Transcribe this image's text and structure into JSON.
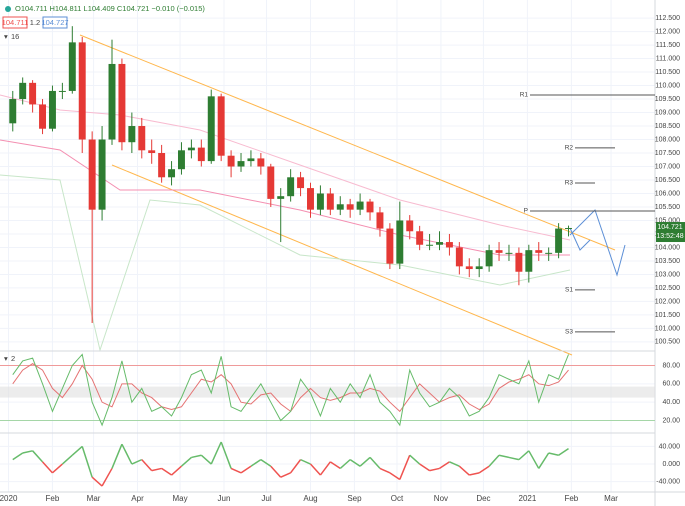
{
  "chart_data": [
    {
      "type": "candlestick",
      "ohlc_text": "O104.711 H104.811 L104.409 C104.721 −0.010 (−0.015)",
      "order_boxes": [
        "104.711",
        "1.2",
        "104.727"
      ],
      "indicator_label": "16",
      "last_price_label": "104.721",
      "countdown": "13:52:48",
      "up_color": "#2e7d32",
      "down_color": "#e53935",
      "x": [
        3,
        10,
        17,
        24,
        31,
        38,
        45,
        52,
        59,
        66,
        73,
        80,
        87,
        94,
        101,
        108,
        115,
        122,
        129,
        136,
        143,
        150,
        157,
        164,
        171,
        178,
        185,
        192,
        199,
        206,
        213,
        220,
        227,
        234,
        241,
        248,
        255,
        262,
        269,
        276,
        283,
        290,
        297,
        304,
        311,
        318,
        325,
        332,
        339,
        346,
        353,
        360,
        367,
        374,
        381,
        388,
        395
      ],
      "open": [
        108.6,
        109.5,
        110.1,
        109.3,
        108.4,
        109.8,
        109.8,
        111.6,
        108.0,
        105.4,
        108.0,
        110.8,
        107.9,
        108.5,
        107.6,
        107.5,
        106.6,
        106.9,
        107.6,
        107.7,
        107.2,
        109.6,
        107.4,
        107.0,
        107.2,
        107.3,
        107.0,
        105.8,
        105.9,
        106.6,
        106.2,
        105.4,
        106.0,
        105.4,
        105.6,
        105.4,
        105.7,
        105.3,
        104.7,
        103.4,
        105.0,
        104.6,
        104.1,
        104.1,
        104.2,
        104.0,
        103.3,
        103.2,
        103.3,
        103.9,
        103.8,
        103.8,
        103.1,
        103.9,
        103.8,
        103.8,
        104.7
      ],
      "high": [
        109.8,
        110.3,
        110.2,
        109.5,
        110.0,
        110.1,
        112.2,
        111.8,
        108.3,
        108.5,
        111.7,
        111.0,
        109.0,
        108.8,
        108.0,
        107.8,
        107.2,
        107.9,
        108.0,
        108.0,
        109.85,
        109.7,
        107.6,
        107.5,
        107.6,
        107.5,
        107.1,
        106.2,
        106.9,
        106.8,
        106.4,
        106.3,
        106.2,
        105.9,
        105.8,
        106.0,
        105.8,
        105.5,
        104.9,
        105.7,
        105.2,
        104.8,
        104.5,
        104.6,
        104.5,
        104.2,
        103.6,
        103.6,
        104.1,
        104.2,
        104.1,
        104.0,
        104.1,
        104.2,
        104.0,
        104.9,
        104.81
      ],
      "low": [
        108.3,
        109.3,
        109.0,
        108.2,
        108.3,
        109.5,
        109.7,
        107.5,
        101.2,
        105.0,
        107.8,
        107.6,
        107.5,
        107.3,
        107.1,
        106.4,
        106.3,
        106.7,
        107.3,
        107.0,
        107.1,
        107.2,
        106.6,
        106.8,
        107.0,
        106.7,
        105.5,
        104.2,
        105.7,
        105.9,
        105.1,
        105.2,
        105.2,
        105.2,
        105.1,
        105.2,
        105.0,
        104.4,
        103.2,
        103.2,
        104.3,
        103.9,
        103.9,
        103.9,
        103.7,
        103.0,
        102.9,
        102.9,
        103.1,
        103.5,
        103.5,
        102.6,
        102.7,
        103.5,
        103.5,
        103.6,
        104.41
      ],
      "close": [
        109.5,
        110.1,
        109.3,
        108.4,
        109.8,
        109.8,
        111.6,
        108.0,
        105.4,
        108.0,
        110.8,
        107.9,
        108.5,
        107.6,
        107.5,
        106.6,
        106.9,
        107.6,
        107.7,
        107.2,
        109.6,
        107.4,
        107.0,
        107.2,
        107.3,
        107.0,
        105.8,
        105.9,
        106.6,
        106.2,
        105.4,
        106.0,
        105.4,
        105.6,
        105.4,
        105.7,
        105.3,
        104.7,
        103.4,
        105.0,
        104.6,
        104.1,
        104.1,
        104.2,
        104.0,
        103.3,
        103.2,
        103.3,
        103.9,
        103.8,
        103.8,
        103.1,
        103.9,
        103.8,
        103.8,
        104.7,
        104.72
      ],
      "pivots": [
        {
          "label": "R1",
          "value": 109.65
        },
        {
          "label": "R2",
          "value": 107.69
        },
        {
          "label": "R3",
          "value": 106.39
        },
        {
          "label": "P",
          "value": 105.35
        },
        {
          "label": "S1",
          "value": 102.43
        },
        {
          "label": "S3",
          "value": 100.87
        }
      ],
      "xlim": [
        -6,
        456
      ],
      "xticks": [
        {
          "value": 0,
          "label": "2020"
        },
        {
          "value": 31,
          "label": "Feb"
        },
        {
          "value": 60,
          "label": "Mar"
        },
        {
          "value": 91,
          "label": "Apr"
        },
        {
          "value": 121,
          "label": "May"
        },
        {
          "value": 152,
          "label": "Jun"
        },
        {
          "value": 182,
          "label": "Jul"
        },
        {
          "value": 213,
          "label": "Aug"
        },
        {
          "value": 244,
          "label": "Sep"
        },
        {
          "value": 274,
          "label": "Oct"
        },
        {
          "value": 305,
          "label": "Nov"
        },
        {
          "value": 335,
          "label": "Dec"
        },
        {
          "value": 366,
          "label": "2021"
        },
        {
          "value": 397,
          "label": "Feb"
        },
        {
          "value": 425,
          "label": "Mar"
        }
      ],
      "ylim": [
        100.2,
        113.17
      ],
      "yticks": [
        {
          "value": 100.5,
          "label": "100.500"
        },
        {
          "value": 101,
          "label": "101.000"
        },
        {
          "value": 101.5,
          "label": "101.500"
        },
        {
          "value": 102,
          "label": "102.000"
        },
        {
          "value": 102.5,
          "label": "102.500"
        },
        {
          "value": 103,
          "label": "103.000"
        },
        {
          "value": 103.5,
          "label": "103.500"
        },
        {
          "value": 104,
          "label": "104.000"
        },
        {
          "value": 104.5,
          "label": "104.500"
        },
        {
          "value": 105,
          "label": "105.000"
        },
        {
          "value": 105.5,
          "label": "105.500"
        },
        {
          "value": 106,
          "label": "106.000"
        },
        {
          "value": 106.5,
          "label": "106.500"
        },
        {
          "value": 107,
          "label": "107.000"
        },
        {
          "value": 107.5,
          "label": "107.500"
        },
        {
          "value": 108,
          "label": "108.000"
        },
        {
          "value": 108.5,
          "label": "108.500"
        },
        {
          "value": 109,
          "label": "109.000"
        },
        {
          "value": 109.5,
          "label": "109.500"
        },
        {
          "value": 110,
          "label": "110.000"
        },
        {
          "value": 110.5,
          "label": "110.500"
        },
        {
          "value": 111,
          "label": "111.000"
        },
        {
          "value": 111.5,
          "label": "111.500"
        },
        {
          "value": 112,
          "label": "112.000"
        },
        {
          "value": 112.5,
          "label": "112.500"
        }
      ],
      "grid": true
    },
    {
      "type": "line",
      "indicator_label": "2",
      "series": [
        {
          "color": "#e57373",
          "values": [
            60,
            75,
            82,
            75,
            55,
            45,
            60,
            80,
            65,
            40,
            35,
            60,
            60,
            50,
            45,
            35,
            32,
            35,
            50,
            65,
            62,
            70,
            60,
            40,
            38,
            48,
            50,
            38,
            30,
            45,
            55,
            45,
            42,
            45,
            50,
            50,
            55,
            52,
            40,
            30,
            45,
            60,
            50,
            40,
            45,
            48,
            38,
            32,
            38,
            55,
            62,
            65,
            70,
            60,
            58,
            62,
            75
          ]
        },
        {
          "color": "#66bb6a",
          "values": [
            70,
            85,
            88,
            60,
            30,
            55,
            80,
            92,
            40,
            15,
            45,
            85,
            40,
            55,
            30,
            35,
            25,
            45,
            70,
            75,
            50,
            90,
            35,
            30,
            45,
            60,
            40,
            20,
            30,
            65,
            50,
            25,
            55,
            40,
            60,
            45,
            70,
            40,
            30,
            15,
            75,
            50,
            35,
            40,
            55,
            45,
            25,
            30,
            45,
            70,
            65,
            60,
            85,
            40,
            70,
            65,
            92
          ]
        }
      ],
      "levels": [
        {
          "value": 80,
          "color": "#ef9a9a"
        },
        {
          "value": 20,
          "color": "#a5d6a7"
        }
      ],
      "band": [
        45,
        57
      ],
      "ylim": [
        7.5,
        94.7
      ],
      "yticks": [
        {
          "value": 20,
          "label": "20.00"
        },
        {
          "value": 40,
          "label": "40.00"
        },
        {
          "value": 60,
          "label": "60.00"
        },
        {
          "value": 80,
          "label": "80.00"
        }
      ],
      "grid": true
    },
    {
      "type": "line",
      "series": [
        {
          "color": "#66bb6a",
          "negative_color": "#ef5350",
          "values": [
            10,
            25,
            30,
            5,
            -20,
            0,
            20,
            40,
            -30,
            -50,
            -10,
            45,
            0,
            10,
            -15,
            -10,
            -25,
            -5,
            15,
            20,
            0,
            50,
            -10,
            -20,
            -5,
            10,
            -5,
            -30,
            -20,
            10,
            0,
            -25,
            5,
            -10,
            10,
            -5,
            15,
            -10,
            -20,
            -35,
            20,
            0,
            -15,
            -10,
            5,
            -5,
            -25,
            -20,
            -5,
            20,
            15,
            10,
            30,
            -10,
            25,
            20,
            35
          ]
        }
      ],
      "ylim": [
        -63.5,
        65.9
      ],
      "yticks": [
        {
          "value": -40,
          "label": "-40.000"
        },
        {
          "value": 0,
          "label": "0.000"
        },
        {
          "value": 40,
          "label": "40.000"
        }
      ],
      "grid": true
    }
  ]
}
